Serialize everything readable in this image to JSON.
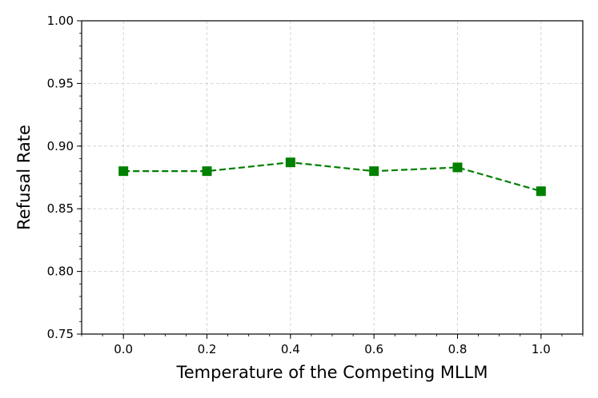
{
  "chart_data": {
    "type": "line",
    "title": "",
    "xlabel": "Temperature of the Competing MLLM",
    "ylabel": "Refusal Rate",
    "xlim": [
      -0.1,
      1.1
    ],
    "ylim": [
      0.75,
      1.0
    ],
    "x_ticks": [
      "0.0",
      "0.2",
      "0.4",
      "0.6",
      "0.8",
      "1.0"
    ],
    "y_ticks": [
      "0.75",
      "0.80",
      "0.85",
      "0.90",
      "0.95",
      "1.00"
    ],
    "grid": true,
    "series": [
      {
        "color": "#008000",
        "line_style": "dashed",
        "marker": "square",
        "x": [
          0.0,
          0.2,
          0.4,
          0.6,
          0.8,
          1.0
        ],
        "y": [
          0.88,
          0.88,
          0.887,
          0.88,
          0.883,
          0.864
        ]
      }
    ]
  }
}
